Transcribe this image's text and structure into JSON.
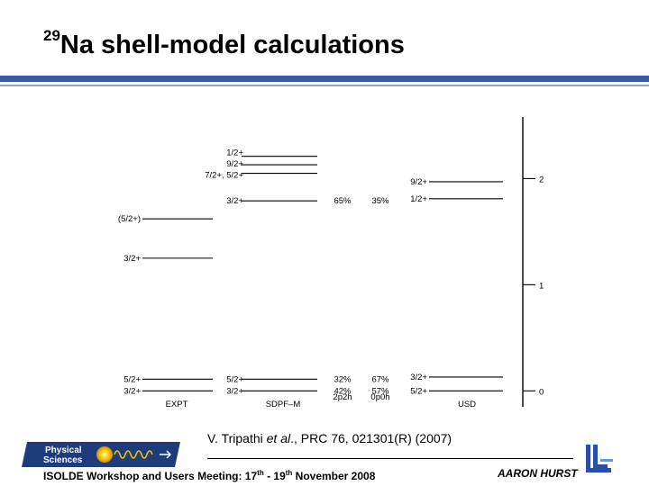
{
  "slide": {
    "title_sup": "29",
    "title_main": "Na shell-model calculations",
    "citation": {
      "pre": "V. Tripathi ",
      "etal": "et al",
      "post": "., PRC 76, 021301(R) (2007)"
    },
    "footer": {
      "main": "ISOLDE Workshop and Users Meeting: 17",
      "sup1": "th",
      "mid": " - 19",
      "sup2": "th",
      "end": " November 2008"
    },
    "author": "AARON HURST",
    "logo_text_1": "Physical",
    "logo_text_2": "Sciences"
  },
  "diagram": {
    "columns": [
      {
        "name": "EXPT",
        "levels": [
          {
            "label": "(5/2+)",
            "y_mev": 1.62
          },
          {
            "label": "3/2+",
            "y_mev": 1.25
          },
          {
            "label": "5/2+",
            "y_mev": 0.11
          },
          {
            "label": "3/2+",
            "y_mev": 0.0
          }
        ]
      },
      {
        "name": "SDPF–M",
        "levels": [
          {
            "label": "1/2+",
            "y_mev": 2.21
          },
          {
            "label": "9/2+",
            "y_mev": 2.13
          },
          {
            "label": "7/2+, 5/2+",
            "y_mev": 2.05
          },
          {
            "label": "3/2+",
            "y_mev": 1.79,
            "pct1": "65%",
            "pct2": "35%"
          },
          {
            "label": "5/2+",
            "y_mev": 0.11,
            "pct1": "32%",
            "pct2": "67%"
          },
          {
            "label": "3/2+",
            "y_mev": 0.0,
            "pct1": "42%",
            "pct2": "57%"
          }
        ]
      },
      {
        "name": "USD",
        "levels": [
          {
            "label": "9/2+",
            "y_mev": 1.97
          },
          {
            "label": "1/2+",
            "y_mev": 1.81
          },
          {
            "label": "3/2+",
            "y_mev": 0.13
          },
          {
            "label": "5/2+",
            "y_mev": 0.0
          }
        ]
      }
    ],
    "config_labels": [
      "2p2h",
      "0p0h"
    ],
    "axis": {
      "ticks": [
        0,
        1,
        2
      ],
      "range": [
        -0.15,
        2.58
      ]
    }
  }
}
